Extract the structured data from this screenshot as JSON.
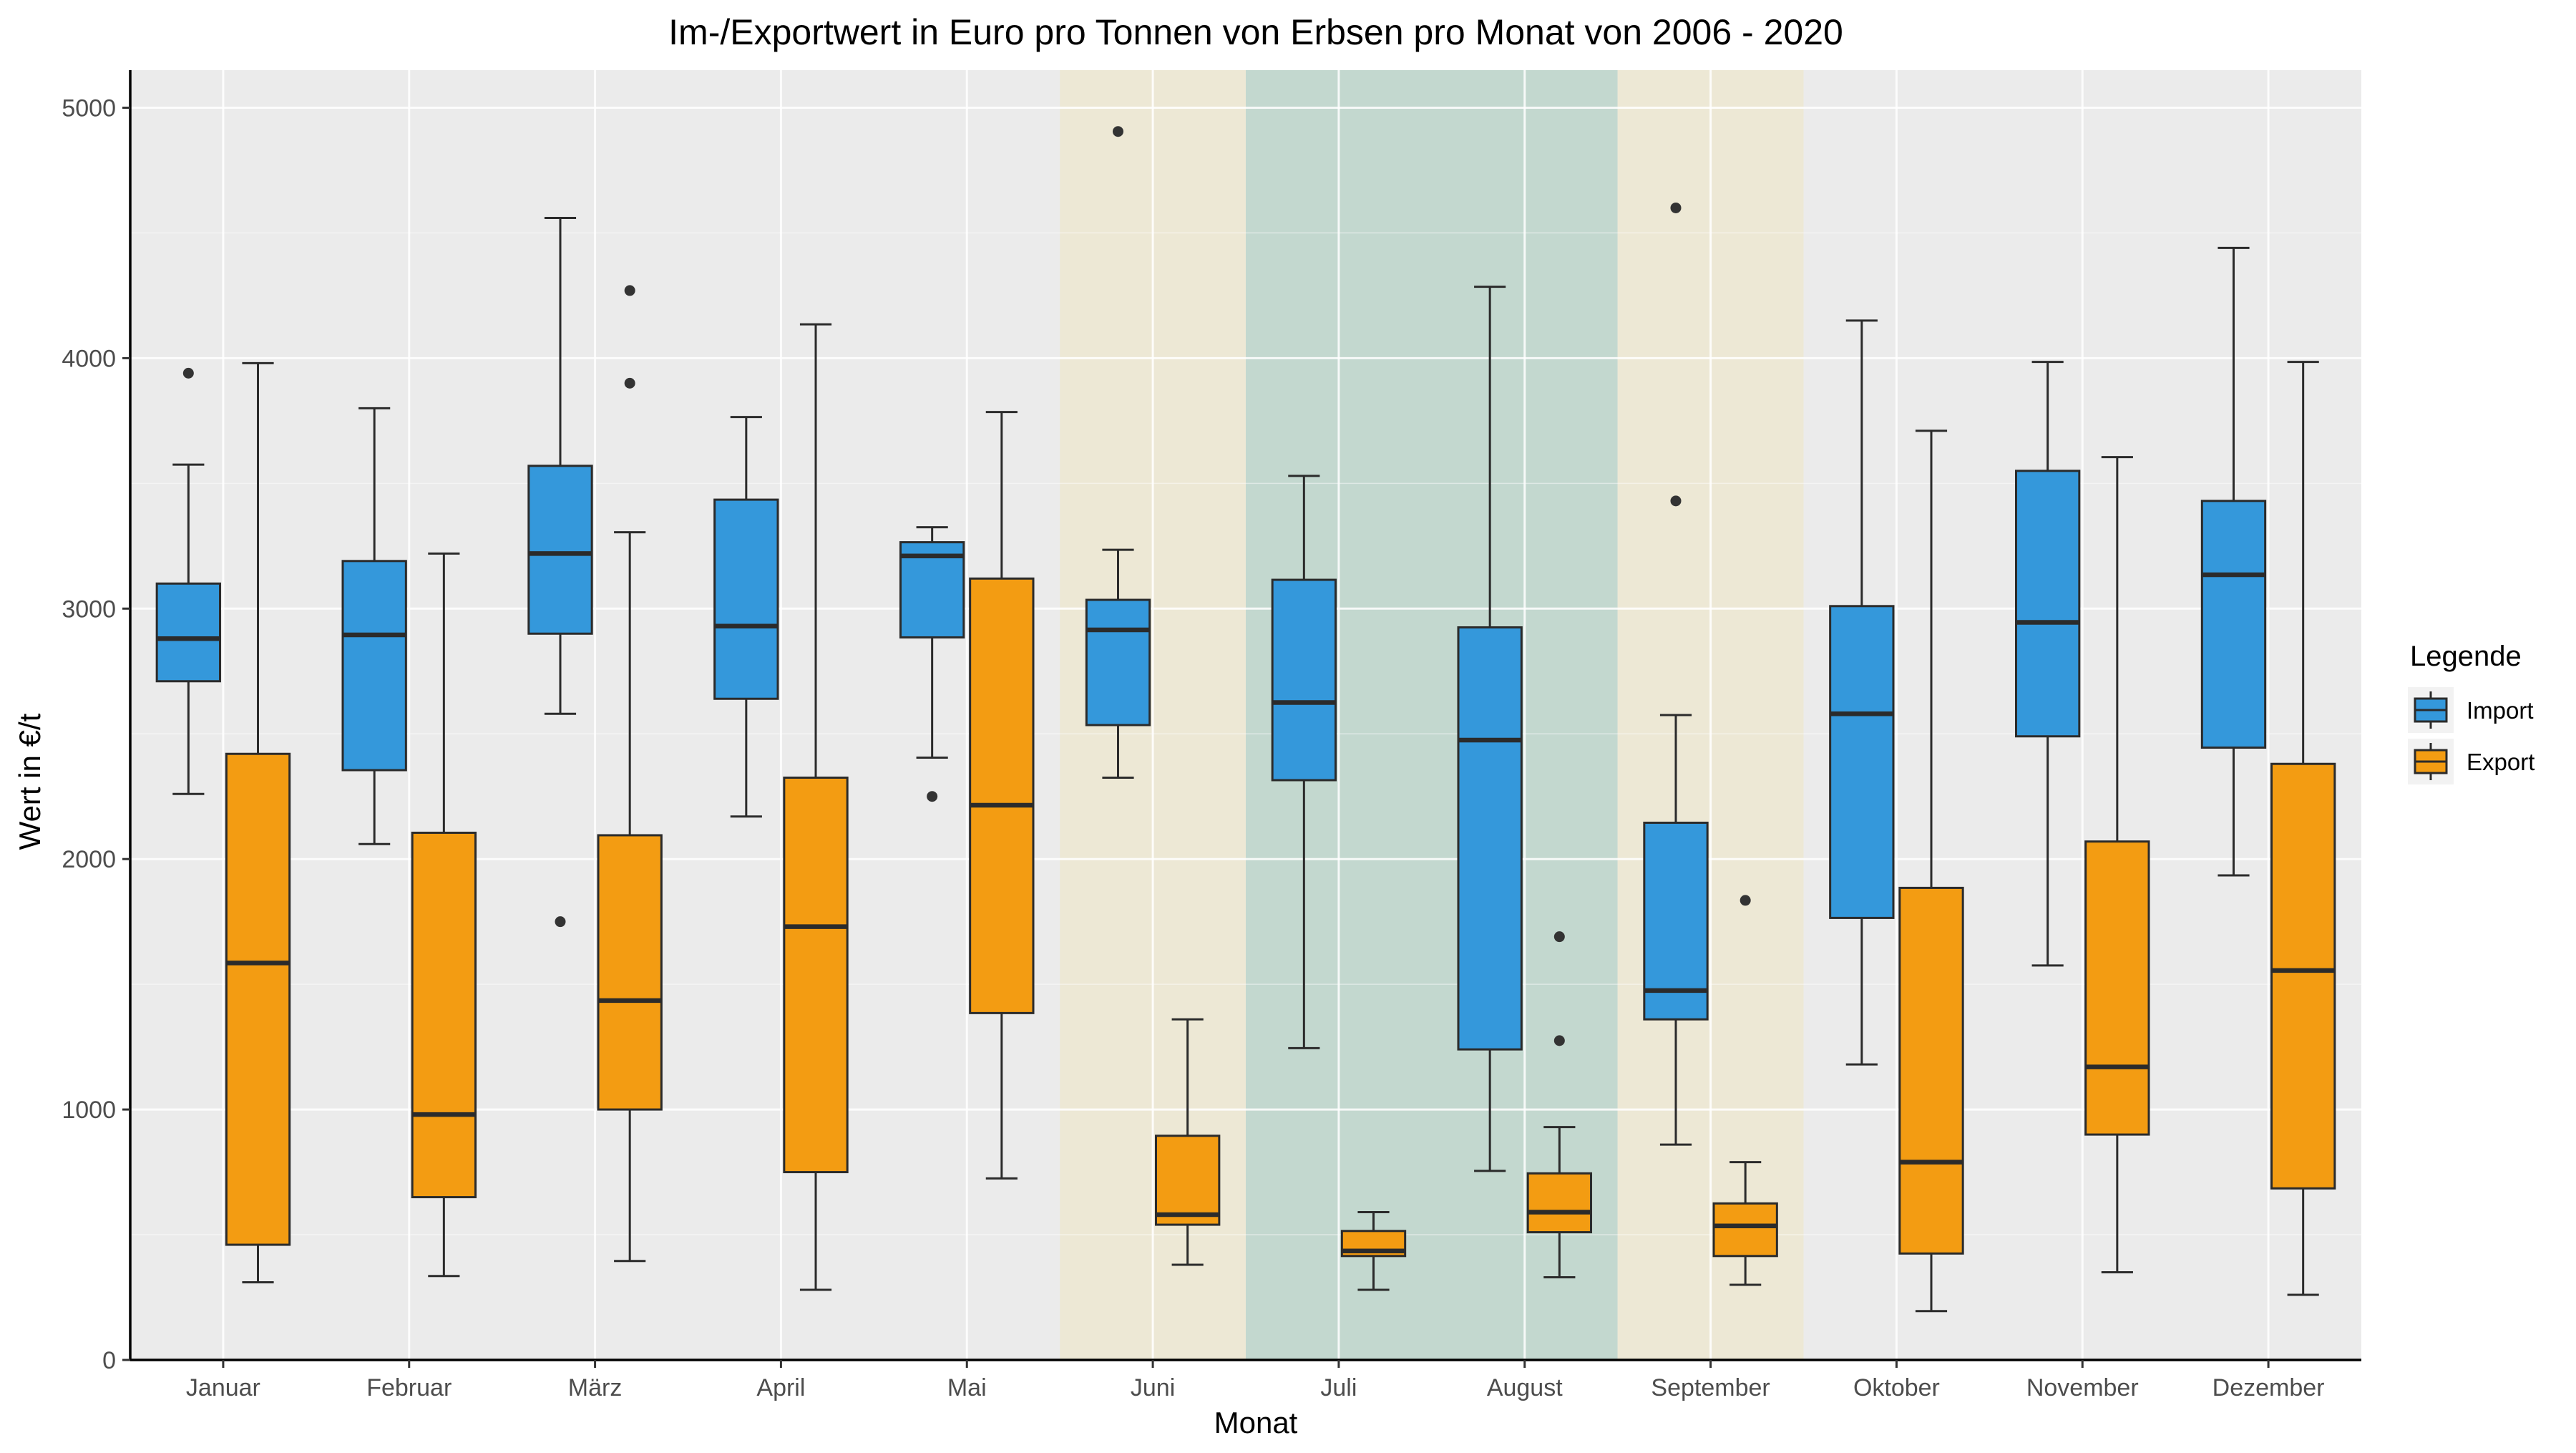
{
  "chart_data": {
    "type": "boxplot",
    "title": "Im-/Exportwert in Euro pro Tonnen von Erbsen pro Monat von 2006 - 2020",
    "xlabel": "Monat",
    "ylabel": "Wert in €/t",
    "ylim": [
      0,
      5150
    ],
    "yticks": [
      0,
      1000,
      2000,
      3000,
      4000,
      5000
    ],
    "grid": true,
    "background": "#ebebeb",
    "categories": [
      "Januar",
      "Februar",
      "März",
      "April",
      "Mai",
      "Juni",
      "Juli",
      "August",
      "September",
      "Oktober",
      "November",
      "Dezember"
    ],
    "highlights": [
      {
        "from": "Juni",
        "to": "Juni",
        "color": "#ede8d5"
      },
      {
        "from": "Juli",
        "to": "August",
        "color": "#c3d8cf"
      },
      {
        "from": "September",
        "to": "September",
        "color": "#ede8d5"
      }
    ],
    "legend": {
      "title": "Legende",
      "position": "right"
    },
    "series": [
      {
        "name": "Import",
        "color": "#3498db",
        "boxes": [
          {
            "whisker_low": 2260,
            "q1": 2710,
            "median": 2880,
            "q3": 3100,
            "whisker_high": 3575,
            "outliers": [
              3940
            ]
          },
          {
            "whisker_low": 2060,
            "q1": 2355,
            "median": 2895,
            "q3": 3190,
            "whisker_high": 3800,
            "outliers": []
          },
          {
            "whisker_low": 2580,
            "q1": 2900,
            "median": 3220,
            "q3": 3570,
            "whisker_high": 4560,
            "outliers": [
              1750
            ]
          },
          {
            "whisker_low": 2170,
            "q1": 2640,
            "median": 2930,
            "q3": 3435,
            "whisker_high": 3765,
            "outliers": []
          },
          {
            "whisker_low": 2405,
            "q1": 2885,
            "median": 3210,
            "q3": 3265,
            "whisker_high": 3325,
            "outliers": [
              2250
            ]
          },
          {
            "whisker_low": 2325,
            "q1": 2535,
            "median": 2915,
            "q3": 3035,
            "whisker_high": 3235,
            "outliers": [
              4905
            ]
          },
          {
            "whisker_low": 1245,
            "q1": 2315,
            "median": 2625,
            "q3": 3115,
            "whisker_high": 3530,
            "outliers": []
          },
          {
            "whisker_low": 755,
            "q1": 1240,
            "median": 2475,
            "q3": 2925,
            "whisker_high": 4285,
            "outliers": []
          },
          {
            "whisker_low": 860,
            "q1": 1360,
            "median": 1475,
            "q3": 2145,
            "whisker_high": 2575,
            "outliers": [
              3430,
              4600
            ]
          },
          {
            "whisker_low": 1180,
            "q1": 1765,
            "median": 2580,
            "q3": 3010,
            "whisker_high": 4150,
            "outliers": []
          },
          {
            "whisker_low": 1575,
            "q1": 2490,
            "median": 2945,
            "q3": 3550,
            "whisker_high": 3985,
            "outliers": []
          },
          {
            "whisker_low": 1935,
            "q1": 2445,
            "median": 3135,
            "q3": 3430,
            "whisker_high": 4440,
            "outliers": []
          }
        ]
      },
      {
        "name": "Export",
        "color": "#f39c12",
        "boxes": [
          {
            "whisker_low": 310,
            "q1": 460,
            "median": 1585,
            "q3": 2420,
            "whisker_high": 3980,
            "outliers": []
          },
          {
            "whisker_low": 335,
            "q1": 650,
            "median": 980,
            "q3": 2105,
            "whisker_high": 3220,
            "outliers": []
          },
          {
            "whisker_low": 395,
            "q1": 1000,
            "median": 1435,
            "q3": 2095,
            "whisker_high": 3305,
            "outliers": [
              3900,
              4270
            ]
          },
          {
            "whisker_low": 280,
            "q1": 750,
            "median": 1730,
            "q3": 2325,
            "whisker_high": 4135,
            "outliers": []
          },
          {
            "whisker_low": 725,
            "q1": 1385,
            "median": 2215,
            "q3": 3120,
            "whisker_high": 3785,
            "outliers": []
          },
          {
            "whisker_low": 380,
            "q1": 540,
            "median": 580,
            "q3": 895,
            "whisker_high": 1360,
            "outliers": []
          },
          {
            "whisker_low": 280,
            "q1": 415,
            "median": 435,
            "q3": 515,
            "whisker_high": 590,
            "outliers": []
          },
          {
            "whisker_low": 330,
            "q1": 510,
            "median": 590,
            "q3": 745,
            "whisker_high": 930,
            "outliers": [
              1275,
              1690
            ]
          },
          {
            "whisker_low": 300,
            "q1": 415,
            "median": 535,
            "q3": 625,
            "whisker_high": 790,
            "outliers": [
              1835
            ]
          },
          {
            "whisker_low": 195,
            "q1": 425,
            "median": 790,
            "q3": 1885,
            "whisker_high": 3710,
            "outliers": []
          },
          {
            "whisker_low": 350,
            "q1": 900,
            "median": 1170,
            "q3": 2070,
            "whisker_high": 3605,
            "outliers": []
          },
          {
            "whisker_low": 260,
            "q1": 685,
            "median": 1555,
            "q3": 2380,
            "whisker_high": 3985,
            "outliers": []
          }
        ]
      }
    ]
  }
}
